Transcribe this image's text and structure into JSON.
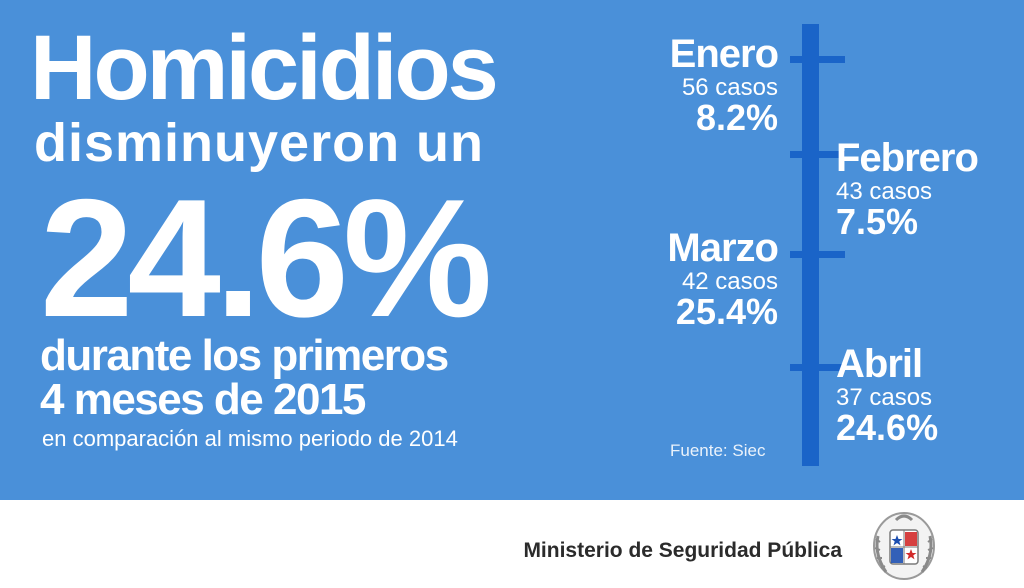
{
  "headline": {
    "title": "Homicidios",
    "line2": "disminuyeron un",
    "percent": "24.6%",
    "line3": "durante los primeros",
    "line4": "4 meses de 2015",
    "line5": "en comparación al mismo periodo de 2014"
  },
  "timeline": {
    "months": [
      {
        "name": "Enero",
        "cases": "56 casos",
        "percent": "8.2%"
      },
      {
        "name": "Febrero",
        "cases": "43 casos",
        "percent": "7.5%"
      },
      {
        "name": "Marzo",
        "cases": "42 casos",
        "percent": "25.4%"
      },
      {
        "name": "Abril",
        "cases": "37 casos",
        "percent": "24.6%"
      }
    ],
    "source": "Fuente: Siec"
  },
  "footer": {
    "ministry": "Ministerio de Seguridad Pública"
  },
  "colors": {
    "background": "#4a90d9",
    "axis": "#1a64c8",
    "text": "#ffffff"
  }
}
